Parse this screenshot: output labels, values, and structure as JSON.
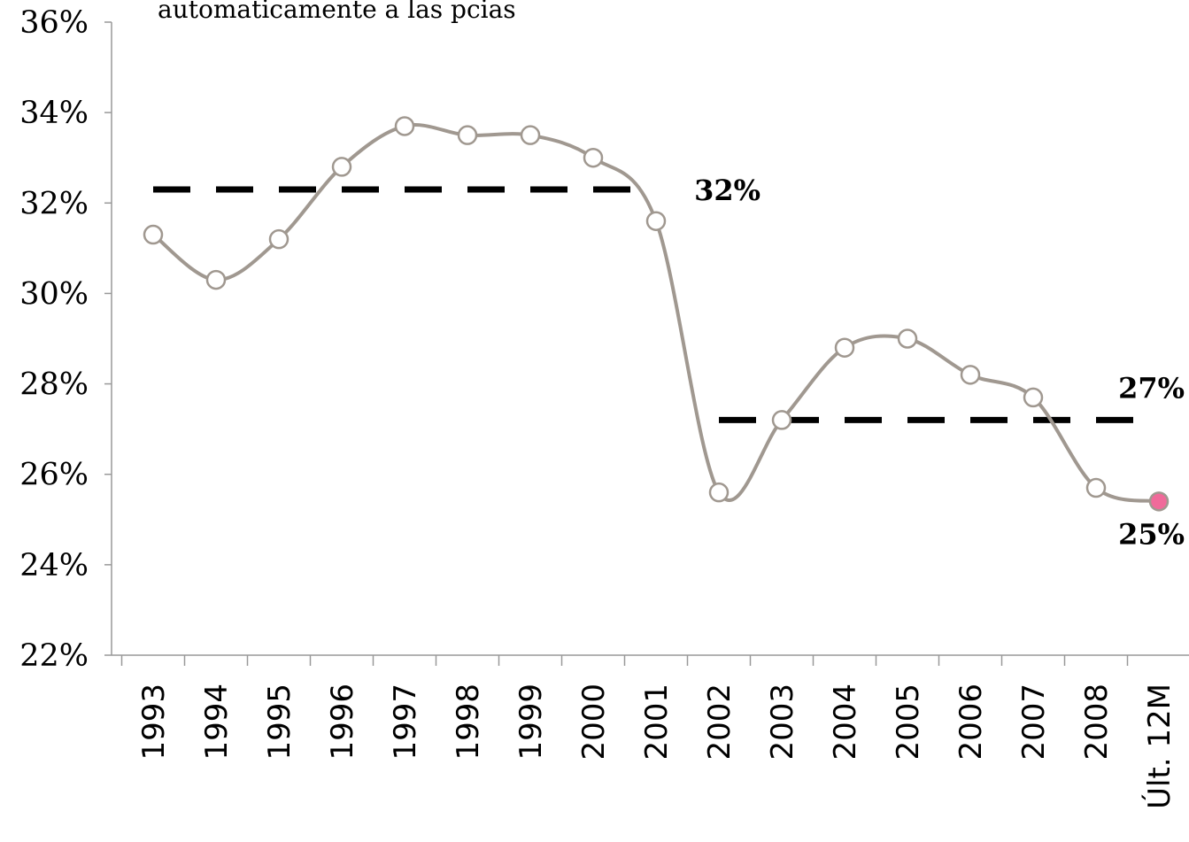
{
  "chart_data": {
    "type": "line",
    "title": "automaticamente a las pcias",
    "categories": [
      "1993",
      "1994",
      "1995",
      "1996",
      "1997",
      "1998",
      "1999",
      "2000",
      "2001",
      "2002",
      "2003",
      "2004",
      "2005",
      "2006",
      "2007",
      "2008",
      "Últ. 12M"
    ],
    "series": [
      {
        "color": "#a09890",
        "marker_fill": "#ffffff",
        "highlight_color": "#f06a9a",
        "values": [
          31.3,
          30.3,
          31.2,
          32.8,
          33.7,
          33.5,
          33.5,
          33.0,
          31.6,
          25.6,
          27.2,
          28.8,
          29.0,
          28.2,
          27.7,
          25.7,
          25.4
        ],
        "value_labels": [
          null,
          null,
          null,
          null,
          null,
          null,
          null,
          null,
          null,
          null,
          null,
          null,
          null,
          null,
          null,
          null,
          "25%"
        ]
      }
    ],
    "reference_lines": [
      {
        "value": 32.3,
        "label": "32%",
        "from": "1993",
        "to": "2001",
        "color": "#000000"
      },
      {
        "value": 27.2,
        "label": "27%",
        "from": "2002",
        "to": "Últ. 12M",
        "color": "#000000"
      }
    ],
    "ylim": [
      22,
      36
    ],
    "yticks": [
      {
        "value": 22,
        "label": "22%"
      },
      {
        "value": 24,
        "label": "24%"
      },
      {
        "value": 26,
        "label": "26%"
      },
      {
        "value": 28,
        "label": "28%"
      },
      {
        "value": 30,
        "label": "30%"
      },
      {
        "value": 32,
        "label": "32%"
      },
      {
        "value": 34,
        "label": "34%"
      },
      {
        "value": 36,
        "label": "36%"
      }
    ],
    "grid": false
  }
}
